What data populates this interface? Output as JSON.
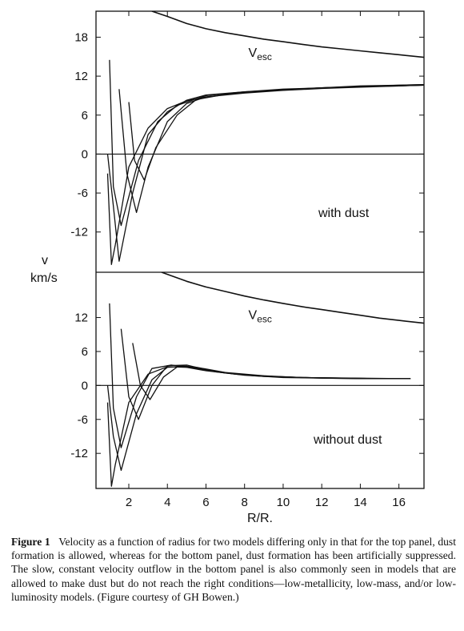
{
  "caption": {
    "label": "Figure 1",
    "text": "Velocity as a function of radius for two models differing only in that for the top panel, dust formation is allowed, whereas for the bottom panel, dust formation has been artificially suppressed. The slow, constant velocity outflow in the bottom panel is also commonly seen in models that are allowed to make dust but do not reach the right conditions—low-metallicity, low-mass, and/or low-luminosity models. (Figure courtesy of GH Bowen.)"
  },
  "shared": {
    "ylabel_line1": "v",
    "ylabel_line2": "km/s",
    "xlabel": "R/R.",
    "x_ticks": [
      2,
      4,
      6,
      8,
      10,
      12,
      14,
      16
    ],
    "xlim": [
      0.3,
      17.3
    ]
  },
  "chart_data": [
    {
      "type": "line",
      "panel": "top",
      "annotation": "with dust",
      "vesc_label": "V",
      "vesc_sub": "esc",
      "xlim": [
        0.3,
        17.3
      ],
      "ylim": [
        -18.2,
        22
      ],
      "y_ticks": [
        18,
        12,
        6,
        0,
        -6,
        -12
      ],
      "zero_line": true,
      "series": [
        {
          "name": "V esc",
          "x": [
            3.2,
            4,
            5,
            6,
            7,
            8,
            9,
            10,
            11,
            12,
            13,
            14,
            15,
            16,
            17.3
          ],
          "y": [
            22,
            21.2,
            20.1,
            19.3,
            18.7,
            18.2,
            17.7,
            17.3,
            16.9,
            16.5,
            16.2,
            15.9,
            15.6,
            15.3,
            14.9
          ]
        },
        {
          "x": [
            0.9,
            1.1,
            1.3,
            2,
            3,
            4,
            5,
            6,
            8,
            10,
            12,
            14,
            16,
            17.3
          ],
          "y": [
            -3,
            -17,
            -14,
            -2,
            4,
            7,
            8.2,
            8.8,
            9.4,
            9.8,
            10.1,
            10.3,
            10.5,
            10.6
          ]
        },
        {
          "x": [
            1.0,
            1.2,
            1.6,
            2.5,
            3.5,
            4.5,
            6,
            8,
            10,
            12,
            14,
            16,
            17.3
          ],
          "y": [
            14.5,
            -5,
            -11,
            -1,
            5,
            7.5,
            9,
            9.6,
            9.9,
            10.2,
            10.4,
            10.5,
            10.6
          ]
        },
        {
          "x": [
            1.5,
            1.9,
            2.4,
            3,
            4,
            5,
            6,
            8,
            10,
            12,
            14,
            16,
            17.3
          ],
          "y": [
            10,
            -3,
            -9,
            -2,
            5,
            7.8,
            8.8,
            9.5,
            9.9,
            10.2,
            10.4,
            10.6,
            10.7
          ]
        },
        {
          "x": [
            0.9,
            1.2,
            1.5,
            2.2,
            3,
            4,
            5,
            6,
            8,
            10,
            12,
            14,
            16,
            17.3
          ],
          "y": [
            0,
            -8,
            -16.5,
            -6,
            3,
            6.5,
            8.3,
            9.1,
            9.6,
            10,
            10.2,
            10.5,
            10.6,
            10.7
          ]
        },
        {
          "x": [
            2.0,
            2.3,
            2.8,
            3.4,
            4.5,
            5.5,
            7,
            9,
            11,
            13,
            15,
            17.3
          ],
          "y": [
            8,
            -1,
            -4,
            1,
            6,
            8.4,
            9.2,
            9.7,
            10,
            10.3,
            10.5,
            10.6
          ]
        }
      ]
    },
    {
      "type": "line",
      "panel": "bottom",
      "annotation": "without dust",
      "vesc_label": "V",
      "vesc_sub": "esc",
      "xlim": [
        0.3,
        17.3
      ],
      "ylim": [
        -18.2,
        20
      ],
      "y_ticks": [
        12,
        6,
        0,
        -6,
        -12
      ],
      "zero_line": true,
      "series": [
        {
          "name": "V esc",
          "x": [
            3.7,
            5,
            6,
            7,
            8,
            9,
            10,
            11,
            12,
            13,
            14,
            15,
            16,
            17.3
          ],
          "y": [
            20,
            18.4,
            17.4,
            16.6,
            15.8,
            15.1,
            14.5,
            13.9,
            13.4,
            12.9,
            12.4,
            11.9,
            11.5,
            11.0
          ]
        },
        {
          "x": [
            0.9,
            1.1,
            1.3,
            2,
            3,
            4,
            5,
            6,
            8,
            10,
            12,
            14,
            16.6
          ],
          "y": [
            -3,
            -17.8,
            -14,
            -3,
            2,
            3.3,
            3.2,
            2.6,
            1.8,
            1.4,
            1.3,
            1.2,
            1.2
          ]
        },
        {
          "x": [
            1.0,
            1.2,
            1.6,
            2.4,
            3.2,
            4.2,
            5.5,
            7,
            9,
            11,
            13,
            15,
            16.6
          ],
          "y": [
            14.5,
            -4,
            -11,
            -2,
            3,
            3.6,
            3,
            2.2,
            1.6,
            1.4,
            1.3,
            1.2,
            1.2
          ]
        },
        {
          "x": [
            1.6,
            2,
            2.5,
            3.2,
            4,
            5,
            6,
            7.5,
            9.5,
            12,
            14.5,
            16.6
          ],
          "y": [
            10,
            -2,
            -6,
            0,
            3.5,
            3.6,
            2.8,
            2,
            1.6,
            1.3,
            1.2,
            1.2
          ]
        },
        {
          "x": [
            0.9,
            1.2,
            1.6,
            2.4,
            3.2,
            4,
            5,
            6.5,
            8.5,
            11,
            13.5,
            16.6
          ],
          "y": [
            0,
            -9,
            -15,
            -5,
            1,
            3.2,
            3.4,
            2.4,
            1.7,
            1.4,
            1.3,
            1.2
          ]
        },
        {
          "x": [
            2.2,
            2.6,
            3.1,
            3.8,
            4.6,
            5.5,
            7,
            9,
            11,
            13,
            15,
            16.6
          ],
          "y": [
            7.5,
            0,
            -2.5,
            1.5,
            3.5,
            3.2,
            2.3,
            1.7,
            1.4,
            1.3,
            1.2,
            1.2
          ]
        }
      ]
    }
  ]
}
